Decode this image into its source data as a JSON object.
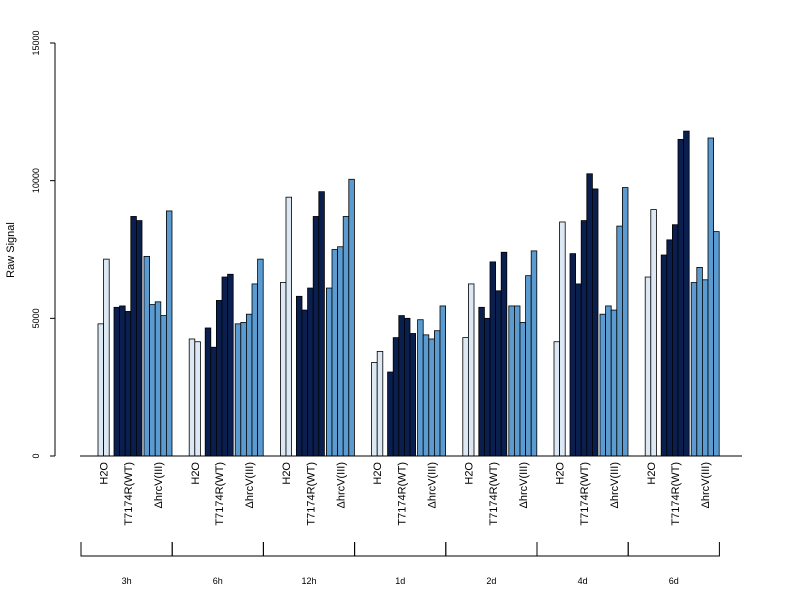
{
  "chart_data": {
    "type": "bar",
    "ylabel": "Raw Signal",
    "ylim": [
      0,
      15000
    ],
    "yticks": [
      0,
      5000,
      10000,
      15000
    ],
    "treatments": [
      "H2O",
      "T7174R(WT)",
      "ΔhrcV(III)"
    ],
    "colors": {
      "H2O": "#dde8f5",
      "T7174R(WT)": "#0b1f4f",
      "ΔhrcV(III)": "#5b9bd0"
    },
    "groups": [
      {
        "time": "3h",
        "H2O": [
          4800,
          7150
        ],
        "T7174R(WT)": [
          5400,
          5450,
          5250,
          8700,
          8550
        ],
        "ΔhrcV(III)": [
          7250,
          5500,
          5600,
          5100,
          8900
        ]
      },
      {
        "time": "6h",
        "H2O": [
          4250,
          4150
        ],
        "T7174R(WT)": [
          4650,
          3950,
          5650,
          6500,
          6600
        ],
        "ΔhrcV(III)": [
          4800,
          4850,
          5150,
          6250,
          7150
        ]
      },
      {
        "time": "12h",
        "H2O": [
          6300,
          9400
        ],
        "T7174R(WT)": [
          5800,
          5300,
          6100,
          8700,
          9600
        ],
        "ΔhrcV(III)": [
          6100,
          7500,
          7600,
          8700,
          10050
        ]
      },
      {
        "time": "1d",
        "H2O": [
          3400,
          3800
        ],
        "T7174R(WT)": [
          3050,
          4300,
          5100,
          5000,
          4450
        ],
        "ΔhrcV(III)": [
          4950,
          4400,
          4250,
          4550,
          5450
        ]
      },
      {
        "time": "2d",
        "H2O": [
          4300,
          6250
        ],
        "T7174R(WT)": [
          5400,
          5000,
          7050,
          6000,
          7400
        ],
        "ΔhrcV(III)": [
          5450,
          5450,
          4850,
          6550,
          7450
        ]
      },
      {
        "time": "4d",
        "H2O": [
          4150,
          8500
        ],
        "T7174R(WT)": [
          7350,
          6250,
          8550,
          10250,
          9700
        ],
        "ΔhrcV(III)": [
          5150,
          5450,
          5300,
          8350,
          9750
        ]
      },
      {
        "time": "6d",
        "H2O": [
          6500,
          8950
        ],
        "T7174R(WT)": [
          7300,
          7850,
          8400,
          11500,
          11800
        ],
        "ΔhrcV(III)": [
          6300,
          6850,
          6400,
          11550,
          8150
        ]
      }
    ]
  }
}
